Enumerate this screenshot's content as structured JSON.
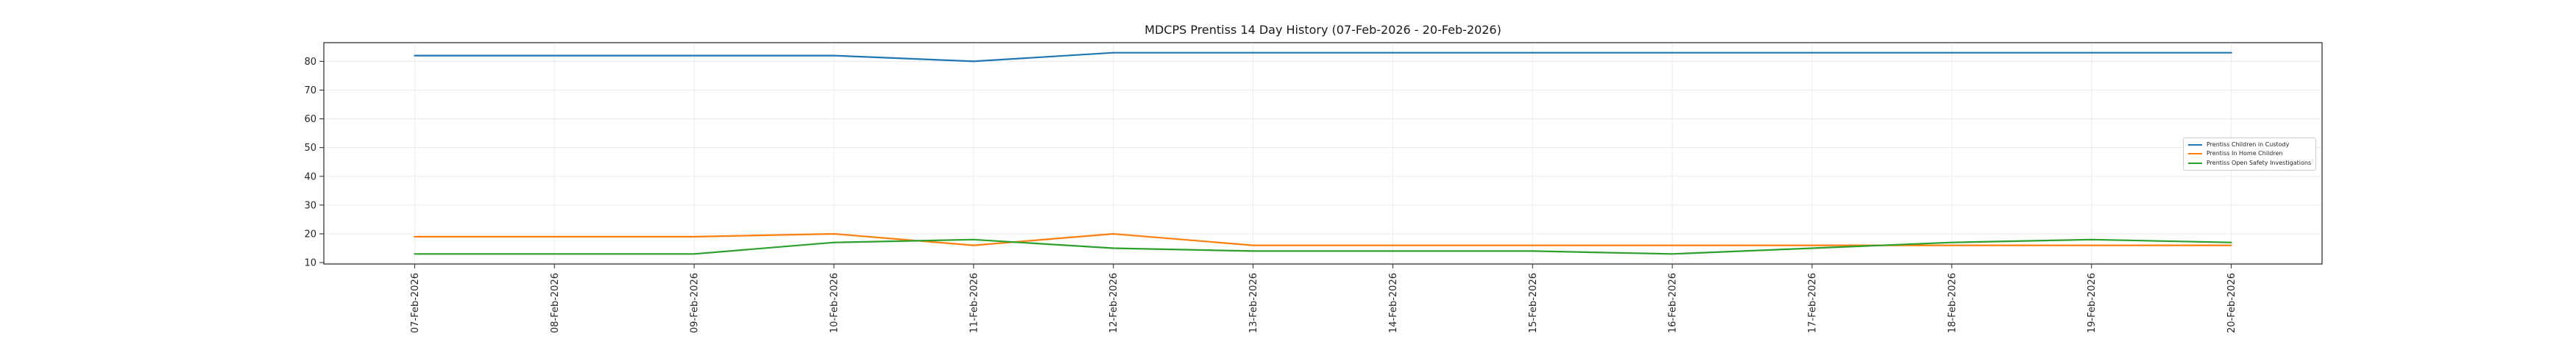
{
  "title": "MDCPS Prentiss 14 Day History (07-Feb-2026 - 20-Feb-2026)",
  "chart_data": {
    "type": "line",
    "categories": [
      "07-Feb-2026",
      "08-Feb-2026",
      "09-Feb-2026",
      "10-Feb-2026",
      "11-Feb-2026",
      "12-Feb-2026",
      "13-Feb-2026",
      "14-Feb-2026",
      "15-Feb-2026",
      "16-Feb-2026",
      "17-Feb-2026",
      "18-Feb-2026",
      "19-Feb-2026",
      "20-Feb-2026"
    ],
    "series": [
      {
        "name": "Prentiss Children in Custody",
        "color": "#1f77b4",
        "values": [
          82,
          82,
          82,
          82,
          80,
          83,
          83,
          83,
          83,
          83,
          83,
          83,
          83,
          83
        ]
      },
      {
        "name": "Prentiss In Home Children",
        "color": "#ff7f0e",
        "values": [
          19,
          19,
          19,
          20,
          16,
          20,
          16,
          16,
          16,
          16,
          16,
          16,
          16,
          16
        ]
      },
      {
        "name": "Prentiss Open Safety Investigations",
        "color": "#2ca02c",
        "values": [
          13,
          13,
          13,
          17,
          18,
          15,
          14,
          14,
          14,
          13,
          15,
          17,
          18,
          17
        ]
      }
    ],
    "title": "MDCPS Prentiss 14 Day History (07-Feb-2026 - 20-Feb-2026)",
    "xlabel": "",
    "ylabel": "",
    "ylim": [
      9.5,
      86.5
    ],
    "yticks": [
      10,
      20,
      30,
      40,
      50,
      60,
      70,
      80
    ],
    "grid": true,
    "legend_position": "center-right inside plot",
    "x_tick_rotation": 90
  }
}
